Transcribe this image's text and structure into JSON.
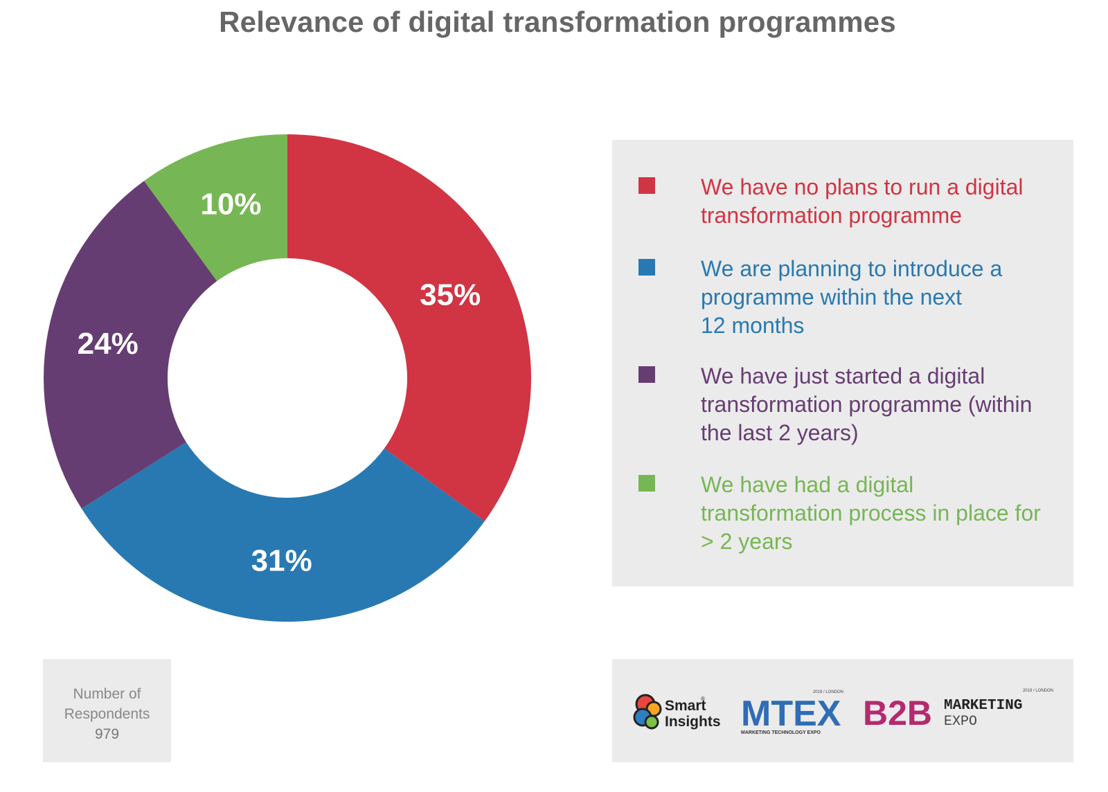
{
  "title": "Relevance of digital transformation programmes",
  "chart_data": {
    "type": "pie",
    "variant": "donut",
    "title": "Relevance of digital transformation programmes",
    "slices": [
      {
        "label": "We have no plans to run a digital transformation programme",
        "value": 35,
        "display": "35%",
        "color": "#d13443"
      },
      {
        "label": "We are planning to introduce a programme within the next 12 months",
        "value": 31,
        "display": "31%",
        "color": "#2879b1"
      },
      {
        "label": "We have just started a digital transformation programme (within the last 2 years)",
        "value": 24,
        "display": "24%",
        "color": "#663d72"
      },
      {
        "label": "We have had a digital transformation process in place for > 2 years",
        "value": 10,
        "display": "10%",
        "color": "#77b655"
      }
    ],
    "legend_position": "right"
  },
  "legend": [
    {
      "lines": [
        "We have no plans to run a digital",
        "transformation programme"
      ]
    },
    {
      "lines": [
        "We are planning to introduce a",
        "programme within the next",
        "12 months"
      ]
    },
    {
      "lines": [
        "We have just started a digital",
        "transformation programme (within",
        "the last 2 years)"
      ]
    },
    {
      "lines": [
        "We have had a digital",
        "transformation process in place for",
        "> 2 years"
      ]
    }
  ],
  "respondents": {
    "label_line1": "Number of",
    "label_line2": "Respondents",
    "value": "979"
  },
  "logos": {
    "smart_insights": {
      "line1": "Smart",
      "line2": "Insights",
      "mark": "®"
    },
    "mtex": {
      "tag": "2019 / LONDON",
      "name": "MTEX",
      "sub": "MARKETING TECHNOLOGY EXPO"
    },
    "b2b": {
      "tag": "2019 / LONDON",
      "name": "B2B",
      "line1": "MARKETING",
      "line2": "EXPO"
    }
  }
}
